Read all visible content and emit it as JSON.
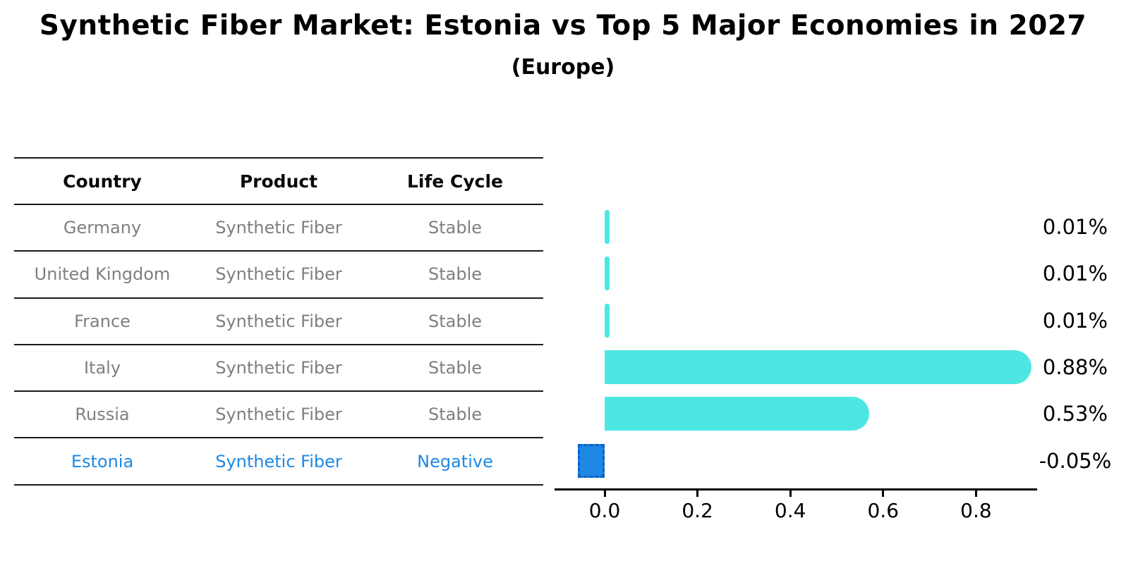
{
  "title": "Synthetic Fiber Market: Estonia vs Top 5 Major Economies in 2027",
  "subtitle": "(Europe)",
  "table": {
    "headers": [
      "Country",
      "Product",
      "Life Cycle"
    ],
    "rows": [
      {
        "country": "Germany",
        "product": "Synthetic Fiber",
        "life_cycle": "Stable",
        "highlight": false
      },
      {
        "country": "United Kingdom",
        "product": "Synthetic Fiber",
        "life_cycle": "Stable",
        "highlight": false
      },
      {
        "country": "France",
        "product": "Synthetic Fiber",
        "life_cycle": "Stable",
        "highlight": false
      },
      {
        "country": "Italy",
        "product": "Synthetic Fiber",
        "life_cycle": "Stable",
        "highlight": false
      },
      {
        "country": "Russia",
        "product": "Synthetic Fiber",
        "life_cycle": "Stable",
        "highlight": false
      },
      {
        "country": "Estonia",
        "product": "Synthetic Fiber",
        "life_cycle": "Negative",
        "highlight": true
      }
    ]
  },
  "chart_data": {
    "type": "bar",
    "orientation": "horizontal",
    "title": "Synthetic Fiber Market: Estonia vs Top 5 Major Economies in 2027",
    "subtitle": "(Europe)",
    "categories": [
      "Germany",
      "United Kingdom",
      "France",
      "Italy",
      "Russia",
      "Estonia"
    ],
    "values": [
      0.01,
      0.01,
      0.01,
      0.88,
      0.53,
      -0.05
    ],
    "value_labels": [
      "0.01%",
      "0.01%",
      "0.01%",
      "0.88%",
      "0.53%",
      "-0.05%"
    ],
    "unit": "percent",
    "x_tick_labels": [
      "0.0",
      "0.2",
      "0.4",
      "0.6",
      "0.8"
    ],
    "x_tick_values": [
      0.0,
      0.2,
      0.4,
      0.6,
      0.8
    ],
    "xlim": [
      -0.11,
      0.93
    ],
    "grid": false,
    "legend": "none",
    "colors": {
      "bar_default": "#4DE7E3",
      "bar_highlight": "#1E88E5",
      "highlight_border": "#0c62c8",
      "value_label_text": "#000000",
      "table_text": "#7f7f7f",
      "table_header_text": "#0a0a0a",
      "highlight_text": "#1E88E5",
      "axis": "#000000"
    }
  }
}
